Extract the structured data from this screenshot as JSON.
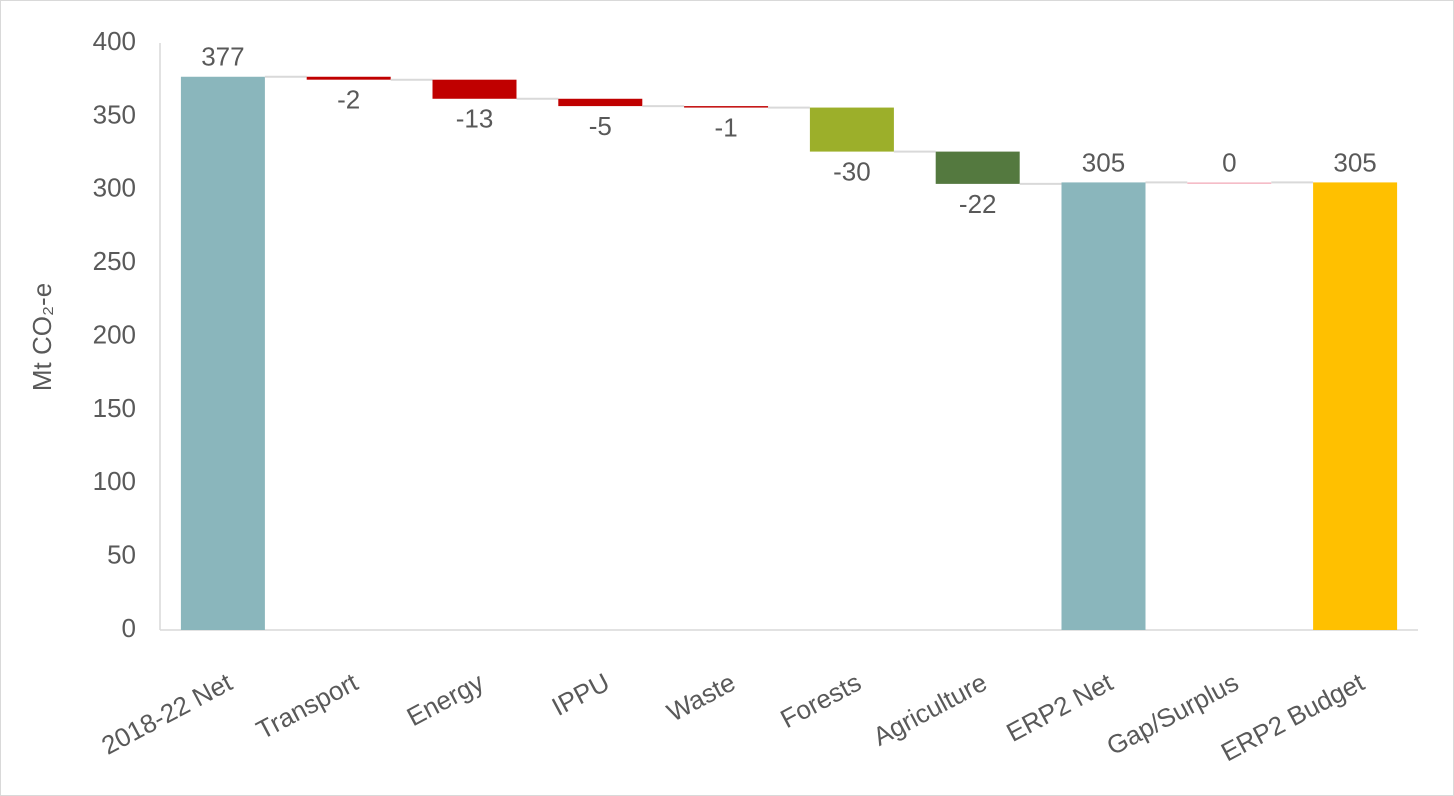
{
  "chart_data": {
    "type": "waterfall",
    "y_label": "Mt CO₂-e",
    "categories": [
      "2018-22 Net",
      "Transport",
      "Energy",
      "IPPU",
      "Waste",
      "Forests",
      "Agriculture",
      "ERP2 Net",
      "Gap/Surplus",
      "ERP2 Budget"
    ],
    "values": [
      377,
      -2,
      -13,
      -5,
      -1,
      -30,
      -22,
      305,
      0,
      305
    ],
    "totals": [
      0,
      7,
      9
    ],
    "colors": [
      "#8ab6bc",
      "#c00000",
      "#c00000",
      "#c00000",
      "#c00000",
      "#9caf2a",
      "#54793f",
      "#8ab6bc",
      "#f4b6c2",
      "#ffc000"
    ],
    "ylim": [
      0,
      400
    ],
    "yticks": [
      0,
      50,
      100,
      150,
      200,
      250,
      300,
      350,
      400
    ],
    "grid": false
  }
}
